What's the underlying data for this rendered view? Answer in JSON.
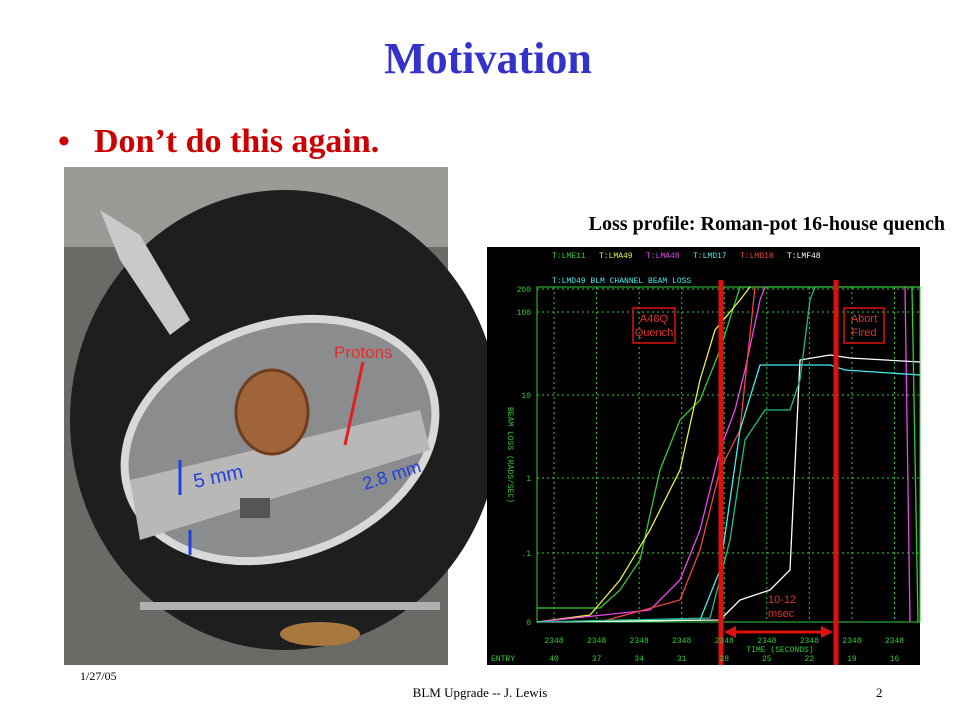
{
  "slide": {
    "title": "Motivation",
    "bullet": "Don’t do this again.",
    "caption": "Loss profile: Roman-pot 16-house quench"
  },
  "photo": {
    "labels": [
      "Protons",
      "5 mm",
      "2.8 mm"
    ]
  },
  "scope": {
    "legend_top": [
      "T:LME11",
      "T:LMA49",
      "T:LMA48",
      "T:LMD17",
      "T:LMD18",
      "T:LMF48"
    ],
    "legend_second": "T:LMD49  BLM CHANNEL BEAM LOSS",
    "y_axis_label": "BEAM LOSS  (RADS/SEC)",
    "y_ticks": [
      "200",
      "100",
      "10",
      "1",
      ".1",
      "0"
    ],
    "x_ticks": [
      "2348",
      "2348",
      "2348",
      "2348",
      "2348",
      "2348",
      "2348",
      "2348",
      "2348"
    ],
    "x_axis_label": "TIME  (SECONDS)",
    "entry_label": "ENTRY",
    "entries": [
      "40",
      "37",
      "34",
      "31",
      "28",
      "25",
      "22",
      "19",
      "16"
    ],
    "annotations": {
      "quench": [
        "A48Q",
        "Quench"
      ],
      "abort": [
        "Abort",
        "Fired"
      ],
      "window": [
        "10-12",
        "msec"
      ]
    }
  },
  "footer": {
    "date": "1/27/05",
    "center": "BLM Upgrade -- J. Lewis",
    "page": "2"
  }
}
